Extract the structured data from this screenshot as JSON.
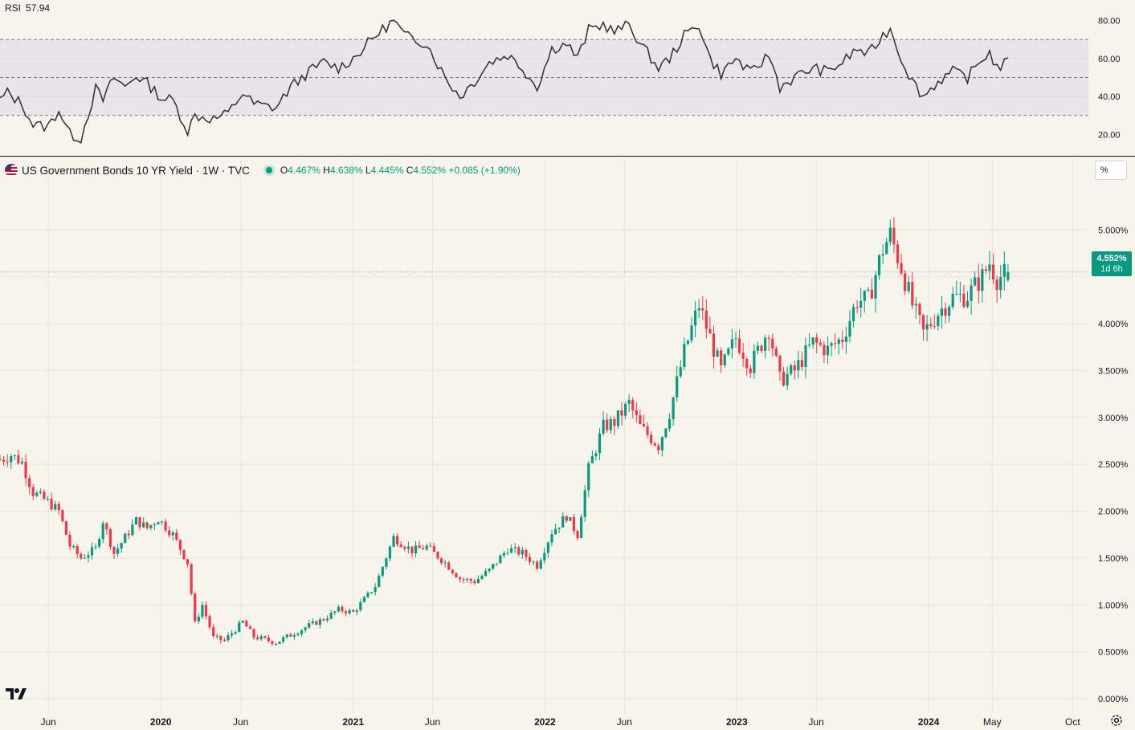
{
  "rsi": {
    "label": "RSI",
    "value": "57.94",
    "scale": {
      "min": 10,
      "max": 90
    },
    "axis_ticks": [
      {
        "value": 80,
        "label": "80.00"
      },
      {
        "value": 60,
        "label": "60.00"
      },
      {
        "value": 40,
        "label": "40.00"
      },
      {
        "value": 20,
        "label": "20.00"
      }
    ],
    "band": {
      "upper": 70,
      "lower": 30,
      "middle": 50
    }
  },
  "legend": {
    "symbol": "US Government Bonds 10 YR Yield · 1W · TVC",
    "o_label": "O",
    "o": "4.467%",
    "h_label": "H",
    "h": "4.638%",
    "l_label": "L",
    "l": "4.445%",
    "c_label": "C",
    "c": "4.552%",
    "change": "+0.085 (+1.90%)"
  },
  "unit_button": "%",
  "price_tag": {
    "value": "4.552%",
    "countdown": "1d 6h"
  },
  "colors": {
    "up": "#089981",
    "down": "#f23645",
    "rsi_line": "#2a2e39",
    "band_fill": "#7e57c2",
    "background": "#f7f4ec",
    "grid": "#e6e3dc"
  },
  "icons": {
    "logo": "tradingview-logo-icon",
    "settings": "gear-icon",
    "flag": "us-flag-icon"
  },
  "chart_data": {
    "type": "candlestick",
    "timeframe": "1W",
    "x_start": "2019-03-01",
    "x_end": "2024-10-31",
    "y_axis": {
      "min": 0,
      "max": 5.5,
      "ticks": [
        {
          "value": 5.0,
          "label": "5.000%"
        },
        {
          "value": 4.5,
          "label": ""
        },
        {
          "value": 4.0,
          "label": "4.000%"
        },
        {
          "value": 3.5,
          "label": "3.500%"
        },
        {
          "value": 3.0,
          "label": "3.000%"
        },
        {
          "value": 2.5,
          "label": "2.500%"
        },
        {
          "value": 2.0,
          "label": "2.000%"
        },
        {
          "value": 1.5,
          "label": "1.500%"
        },
        {
          "value": 1.0,
          "label": "1.000%"
        },
        {
          "value": 0.5,
          "label": "0.500%"
        },
        {
          "value": 0.0,
          "label": "0.000%"
        }
      ]
    },
    "x_ticks": [
      {
        "date": "2019-06-01",
        "label": "Jun",
        "bold": false
      },
      {
        "date": "2020-01-01",
        "label": "2020",
        "bold": true
      },
      {
        "date": "2020-06-01",
        "label": "Jun",
        "bold": false
      },
      {
        "date": "2021-01-01",
        "label": "2021",
        "bold": true
      },
      {
        "date": "2021-06-01",
        "label": "Jun",
        "bold": false
      },
      {
        "date": "2022-01-01",
        "label": "2022",
        "bold": true
      },
      {
        "date": "2022-06-01",
        "label": "Jun",
        "bold": false
      },
      {
        "date": "2023-01-01",
        "label": "2023",
        "bold": true
      },
      {
        "date": "2023-06-01",
        "label": "Jun",
        "bold": false
      },
      {
        "date": "2024-01-01",
        "label": "2024",
        "bold": true
      },
      {
        "date": "2024-05-01",
        "label": "May",
        "bold": false
      },
      {
        "date": "2024-10-01",
        "label": "Oct",
        "bold": false
      }
    ],
    "series_anchors": [
      [
        "2019-03-01",
        2.55
      ],
      [
        "2019-03-22",
        2.6
      ],
      [
        "2019-04-12",
        2.52
      ],
      [
        "2019-05-03",
        2.2
      ],
      [
        "2019-05-31",
        2.1
      ],
      [
        "2019-06-21",
        2.0
      ],
      [
        "2019-07-12",
        1.63
      ],
      [
        "2019-08-02",
        1.5
      ],
      [
        "2019-08-30",
        1.6
      ],
      [
        "2019-09-13",
        1.9
      ],
      [
        "2019-10-04",
        1.55
      ],
      [
        "2019-10-25",
        1.72
      ],
      [
        "2019-11-15",
        1.9
      ],
      [
        "2019-12-06",
        1.82
      ],
      [
        "2019-12-27",
        1.92
      ],
      [
        "2020-01-24",
        1.75
      ],
      [
        "2020-02-21",
        1.45
      ],
      [
        "2020-03-06",
        0.8
      ],
      [
        "2020-03-20",
        1.0
      ],
      [
        "2020-04-10",
        0.65
      ],
      [
        "2020-05-01",
        0.62
      ],
      [
        "2020-06-05",
        0.82
      ],
      [
        "2020-06-26",
        0.66
      ],
      [
        "2020-08-07",
        0.6
      ],
      [
        "2020-09-04",
        0.68
      ],
      [
        "2020-10-09",
        0.78
      ],
      [
        "2020-11-06",
        0.85
      ],
      [
        "2020-12-04",
        0.95
      ],
      [
        "2021-01-01",
        0.92
      ],
      [
        "2021-02-12",
        1.2
      ],
      [
        "2021-03-19",
        1.72
      ],
      [
        "2021-04-23",
        1.58
      ],
      [
        "2021-05-21",
        1.62
      ],
      [
        "2021-06-25",
        1.45
      ],
      [
        "2021-07-23",
        1.28
      ],
      [
        "2021-08-20",
        1.25
      ],
      [
        "2021-09-17",
        1.37
      ],
      [
        "2021-10-22",
        1.6
      ],
      [
        "2021-11-19",
        1.55
      ],
      [
        "2021-12-17",
        1.42
      ],
      [
        "2022-01-14",
        1.78
      ],
      [
        "2022-02-11",
        1.95
      ],
      [
        "2022-03-04",
        1.75
      ],
      [
        "2022-03-25",
        2.45
      ],
      [
        "2022-04-22",
        2.9
      ],
      [
        "2022-05-13",
        2.95
      ],
      [
        "2022-06-10",
        3.15
      ],
      [
        "2022-07-01",
        2.9
      ],
      [
        "2022-08-05",
        2.7
      ],
      [
        "2022-08-26",
        3.05
      ],
      [
        "2022-09-23",
        3.7
      ],
      [
        "2022-10-21",
        4.2
      ],
      [
        "2022-11-11",
        3.85
      ],
      [
        "2022-12-02",
        3.5
      ],
      [
        "2022-12-30",
        3.85
      ],
      [
        "2023-01-27",
        3.55
      ],
      [
        "2023-03-03",
        3.95
      ],
      [
        "2023-03-24",
        3.4
      ],
      [
        "2023-04-21",
        3.5
      ],
      [
        "2023-05-26",
        3.8
      ],
      [
        "2023-06-23",
        3.72
      ],
      [
        "2023-07-21",
        3.85
      ],
      [
        "2023-08-18",
        4.25
      ],
      [
        "2023-09-08",
        4.25
      ],
      [
        "2023-10-06",
        4.8
      ],
      [
        "2023-10-20",
        4.95
      ],
      [
        "2023-11-10",
        4.6
      ],
      [
        "2023-12-01",
        4.2
      ],
      [
        "2023-12-22",
        3.9
      ],
      [
        "2024-01-19",
        4.12
      ],
      [
        "2024-02-16",
        4.28
      ],
      [
        "2024-03-15",
        4.3
      ],
      [
        "2024-04-12",
        4.5
      ],
      [
        "2024-04-26",
        4.65
      ],
      [
        "2024-05-10",
        4.48
      ],
      [
        "2024-05-31",
        4.55
      ]
    ],
    "rsi_anchors": [
      [
        "2019-03-01",
        38
      ],
      [
        "2019-03-15",
        42
      ],
      [
        "2019-04-12",
        36
      ],
      [
        "2019-05-03",
        25
      ],
      [
        "2019-05-31",
        24
      ],
      [
        "2019-06-21",
        33
      ],
      [
        "2019-07-12",
        20
      ],
      [
        "2019-08-02",
        18
      ],
      [
        "2019-08-30",
        44
      ],
      [
        "2019-09-13",
        38
      ],
      [
        "2019-10-04",
        50
      ],
      [
        "2019-10-25",
        45
      ],
      [
        "2019-11-15",
        51
      ],
      [
        "2019-12-06",
        47
      ],
      [
        "2020-01-03",
        39
      ],
      [
        "2020-01-24",
        38
      ],
      [
        "2020-02-21",
        22
      ],
      [
        "2020-03-06",
        30
      ],
      [
        "2020-04-10",
        28
      ],
      [
        "2020-05-08",
        31
      ],
      [
        "2020-06-05",
        42
      ],
      [
        "2020-06-26",
        36
      ],
      [
        "2020-08-07",
        34
      ],
      [
        "2020-09-04",
        45
      ],
      [
        "2020-10-09",
        53
      ],
      [
        "2020-11-06",
        58
      ],
      [
        "2020-12-04",
        55
      ],
      [
        "2021-01-01",
        60
      ],
      [
        "2021-02-12",
        72
      ],
      [
        "2021-03-19",
        80
      ],
      [
        "2021-04-09",
        72
      ],
      [
        "2021-05-21",
        68
      ],
      [
        "2021-06-25",
        50
      ],
      [
        "2021-07-23",
        40
      ],
      [
        "2021-08-20",
        48
      ],
      [
        "2021-09-17",
        58
      ],
      [
        "2021-10-22",
        62
      ],
      [
        "2021-11-19",
        55
      ],
      [
        "2021-12-17",
        45
      ],
      [
        "2022-01-14",
        65
      ],
      [
        "2022-02-11",
        68
      ],
      [
        "2022-03-04",
        60
      ],
      [
        "2022-03-25",
        75
      ],
      [
        "2022-04-22",
        78
      ],
      [
        "2022-05-13",
        74
      ],
      [
        "2022-06-10",
        78
      ],
      [
        "2022-07-01",
        68
      ],
      [
        "2022-08-05",
        55
      ],
      [
        "2022-08-26",
        60
      ],
      [
        "2022-09-23",
        72
      ],
      [
        "2022-10-21",
        78
      ],
      [
        "2022-11-11",
        60
      ],
      [
        "2022-12-02",
        52
      ],
      [
        "2022-12-30",
        60
      ],
      [
        "2023-01-27",
        52
      ],
      [
        "2023-03-03",
        62
      ],
      [
        "2023-03-24",
        45
      ],
      [
        "2023-04-21",
        50
      ],
      [
        "2023-05-26",
        55
      ],
      [
        "2023-06-23",
        53
      ],
      [
        "2023-07-21",
        58
      ],
      [
        "2023-08-18",
        65
      ],
      [
        "2023-09-08",
        62
      ],
      [
        "2023-10-06",
        72
      ],
      [
        "2023-10-20",
        76
      ],
      [
        "2023-11-10",
        60
      ],
      [
        "2023-12-01",
        48
      ],
      [
        "2023-12-22",
        40
      ],
      [
        "2024-01-19",
        48
      ],
      [
        "2024-02-16",
        53
      ],
      [
        "2024-03-15",
        50
      ],
      [
        "2024-04-12",
        60
      ],
      [
        "2024-04-26",
        63
      ],
      [
        "2024-05-10",
        55
      ],
      [
        "2024-05-31",
        58
      ]
    ]
  }
}
